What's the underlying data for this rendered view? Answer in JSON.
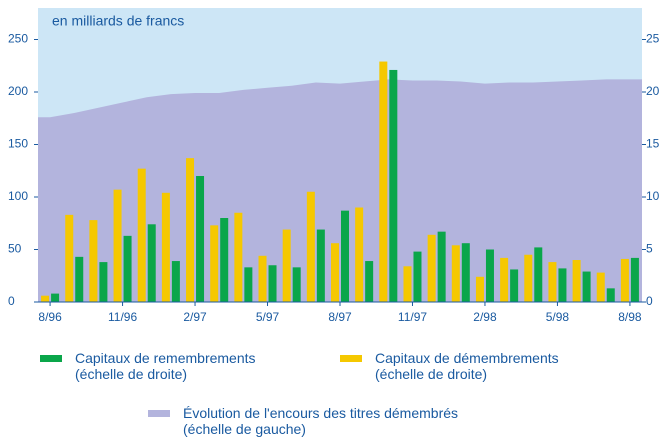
{
  "chart_data": {
    "type": "bar-area",
    "subtitle": "en milliards de francs",
    "categories": [
      "8/96",
      null,
      null,
      "11/96",
      null,
      null,
      "2/97",
      null,
      null,
      "5/97",
      null,
      null,
      "8/97",
      null,
      null,
      "11/97",
      null,
      null,
      "2/98",
      null,
      null,
      "5/98",
      null,
      null,
      "8/98"
    ],
    "series": [
      {
        "name": "Capitaux de remembrements\n(échelle de droite)",
        "type": "bar",
        "axis": "y2",
        "color": "#0aa64a",
        "values": [
          0.8,
          4.3,
          3.8,
          6.3,
          7.4,
          3.9,
          12.0,
          8.0,
          3.3,
          3.5,
          3.3,
          6.9,
          8.7,
          3.9,
          22.1,
          4.8,
          6.7,
          5.6,
          5.0,
          3.1,
          5.2,
          3.2,
          2.9,
          1.3,
          4.2
        ]
      },
      {
        "name": "Capitaux de démembrements\n(échelle de droite)",
        "type": "bar",
        "axis": "y2",
        "color": "#f5c800",
        "values": [
          0.6,
          8.3,
          7.8,
          10.7,
          12.7,
          10.4,
          13.7,
          7.3,
          8.5,
          4.4,
          6.9,
          10.5,
          5.6,
          9.0,
          22.9,
          3.4,
          6.4,
          5.4,
          2.4,
          4.2,
          4.5,
          3.8,
          4.0,
          2.8,
          4.1
        ]
      },
      {
        "name": "Évolution de l'encours des titres démembrés\n(échelle de gauche)",
        "type": "area",
        "axis": "y",
        "color": "#b3b4dd",
        "values": [
          176,
          180,
          185,
          190,
          195,
          198,
          199,
          199,
          202,
          204,
          206,
          209,
          208,
          210,
          212,
          211,
          211,
          210,
          208,
          209,
          209,
          210,
          211,
          212,
          212
        ]
      }
    ],
    "ylim": [
      0,
      280
    ],
    "yticks": [
      0,
      50,
      100,
      150,
      200,
      250
    ],
    "y2lim": [
      0,
      28
    ],
    "y2ticks": [
      0,
      5,
      10,
      15,
      20,
      25
    ],
    "background": "#cde6f6"
  }
}
